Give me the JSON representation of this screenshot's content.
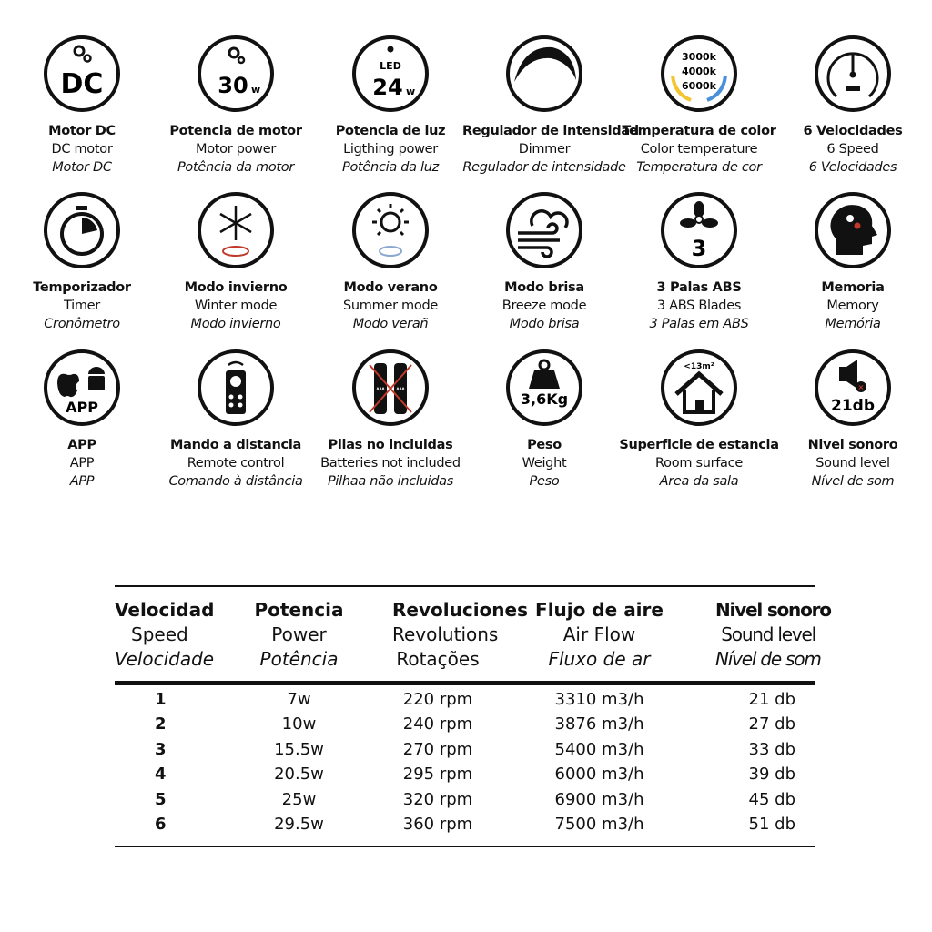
{
  "features": [
    {
      "icon": "dc-motor-icon",
      "icon_text": [
        "DC"
      ],
      "es": "Motor DC",
      "en": "DC motor",
      "pt": "Motor DC"
    },
    {
      "icon": "motor-power-icon",
      "icon_text": [
        "30",
        "w"
      ],
      "es": "Potencia de motor",
      "en": "Motor power",
      "pt": "Potência da motor"
    },
    {
      "icon": "led-power-icon",
      "icon_text": [
        "LED",
        "24",
        "w"
      ],
      "es": "Potencia de luz",
      "en": "Ligthing power",
      "pt": "Potência da luz"
    },
    {
      "icon": "dimmer-icon",
      "icon_text": [],
      "es": "Regulador de intensidad",
      "en": "Dimmer",
      "pt": "Regulador de intensidade"
    },
    {
      "icon": "color-temperature-icon",
      "icon_text": [
        "3000k",
        "4000k",
        "6000k"
      ],
      "es": "Temperatura de color",
      "en": "Color temperature",
      "pt": "Temperatura de cor"
    },
    {
      "icon": "speedometer-icon",
      "icon_text": [],
      "es": "6 Velocidades",
      "en": "6 Speed",
      "pt": "6 Velocidades"
    },
    {
      "icon": "stopwatch-icon",
      "icon_text": [],
      "es": "Temporizador",
      "en": "Timer",
      "pt": "Cronômetro"
    },
    {
      "icon": "snowflake-icon",
      "icon_text": [],
      "es": "Modo invierno",
      "en": "Winter mode",
      "pt": "Modo invierno"
    },
    {
      "icon": "sun-icon",
      "icon_text": [],
      "es": "Modo verano",
      "en": "Summer mode",
      "pt": "Modo verañ"
    },
    {
      "icon": "breeze-icon",
      "icon_text": [],
      "es": "Modo brisa",
      "en": "Breeze mode",
      "pt": "Modo brisa"
    },
    {
      "icon": "fan-blades-icon",
      "icon_text": [
        "3"
      ],
      "es": "3 Palas ABS",
      "en": "3 ABS Blades",
      "pt": "3 Palas em ABS"
    },
    {
      "icon": "memory-head-icon",
      "icon_text": [],
      "es": "Memoria",
      "en": "Memory",
      "pt": "Memória"
    },
    {
      "icon": "app-icon",
      "icon_text": [
        "APP"
      ],
      "es": "APP",
      "en": "APP",
      "pt": "APP"
    },
    {
      "icon": "remote-control-icon",
      "icon_text": [],
      "es": "Mando a distancia",
      "en": "Remote control",
      "pt": "Comando à distância"
    },
    {
      "icon": "no-batteries-icon",
      "icon_text": [
        "AAA",
        "AAA"
      ],
      "es": "Pilas no incluidas",
      "en": "Batteries not included",
      "pt": "Pilhaa não incluidas"
    },
    {
      "icon": "weight-icon",
      "icon_text": [
        "3,6Kg"
      ],
      "es": "Peso",
      "en": "Weight",
      "pt": "Peso"
    },
    {
      "icon": "room-surface-icon",
      "icon_text": [
        "<13m²"
      ],
      "es": "Superficie de estancia",
      "en": "Room surface",
      "pt": "Area da sala"
    },
    {
      "icon": "sound-level-icon",
      "icon_text": [
        "21db"
      ],
      "es": "Nivel sonoro",
      "en": "Sound level",
      "pt": "Nível de som"
    }
  ],
  "colors": {
    "warm": "#f2c531",
    "cool": "#4a90d9",
    "red": "#c0392b"
  },
  "table": {
    "headers": [
      {
        "es": "Velocidad",
        "en": "Speed",
        "pt": "Velocidade"
      },
      {
        "es": "Potencia",
        "en": "Power",
        "pt": "Potência"
      },
      {
        "es": "Revoluciones",
        "en": "Revolutions",
        "pt": "Rotações"
      },
      {
        "es": "Flujo de aire",
        "en": "Air Flow",
        "pt": "Fluxo de ar"
      },
      {
        "es": "Nivel sonoro",
        "en": "Sound level",
        "pt": "Nível de som"
      }
    ],
    "rows": [
      [
        "1",
        "7w",
        "220 rpm",
        "3310 m3/h",
        "21 db"
      ],
      [
        "2",
        "10w",
        "240 rpm",
        "3876 m3/h",
        "27 db"
      ],
      [
        "3",
        "15.5w",
        "270 rpm",
        "5400 m3/h",
        "33 db"
      ],
      [
        "4",
        "20.5w",
        "295 rpm",
        "6000 m3/h",
        "39 db"
      ],
      [
        "5",
        "25w",
        "320 rpm",
        "6900 m3/h",
        "45 db"
      ],
      [
        "6",
        "29.5w",
        "360 rpm",
        "7500 m3/h",
        "51 db"
      ]
    ]
  }
}
